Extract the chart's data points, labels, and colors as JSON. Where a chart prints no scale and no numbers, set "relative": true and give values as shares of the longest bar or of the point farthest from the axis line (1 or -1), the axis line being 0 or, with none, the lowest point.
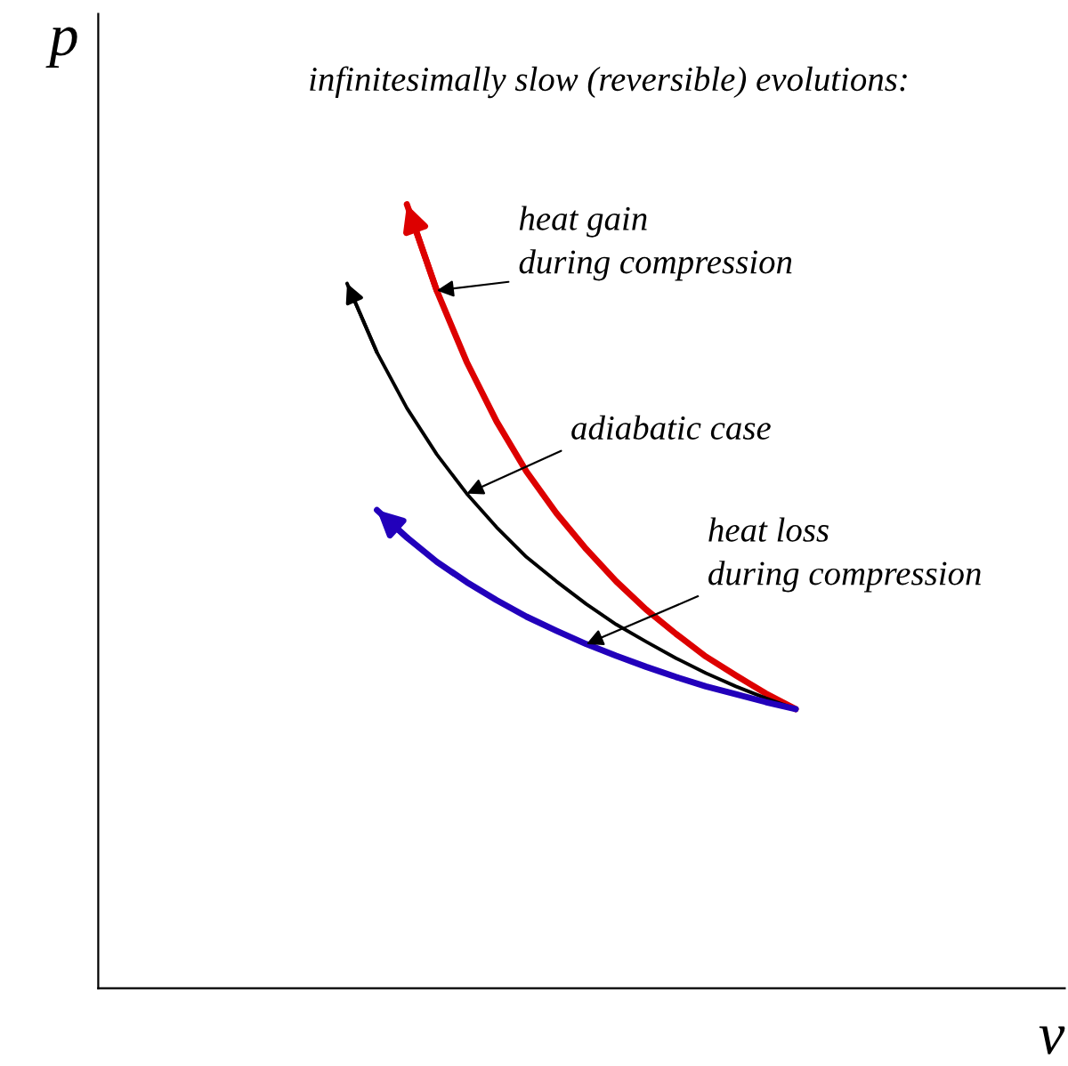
{
  "chart_data": {
    "type": "line",
    "relative": true,
    "title": "infinitesimally slow (reversible) evolutions:",
    "xlabel": "v",
    "ylabel": "p",
    "legend": false,
    "marker": "none",
    "line_style": "solid",
    "categories": [
      null,
      null,
      null,
      null,
      null,
      null,
      null,
      null,
      null,
      null,
      null,
      null,
      null,
      null,
      null,
      null
    ],
    "series": [
      {
        "color": "#dd0000",
        "values": [
          null,
          null,
          1.0,
          0.89,
          0.799,
          0.723,
          0.659,
          0.606,
          0.56,
          0.519,
          0.483,
          0.452,
          0.423,
          0.399,
          0.376,
          0.356
        ]
      },
      {
        "color": "#000000",
        "values": [
          0.899,
          0.811,
          0.74,
          0.681,
          0.631,
          0.588,
          0.55,
          0.519,
          0.49,
          0.464,
          0.442,
          0.421,
          0.402,
          0.385,
          0.37,
          0.356
        ]
      },
      {
        "color": "#2200bb",
        "values": [
          null,
          0.61,
          0.575,
          0.544,
          0.518,
          0.495,
          0.474,
          0.456,
          0.439,
          0.424,
          0.41,
          0.397,
          0.385,
          0.375,
          0.365,
          0.356
        ]
      }
    ],
    "annotations": [
      "heat gain\nduring compression",
      "adiabatic case",
      "heat loss\nduring compression"
    ]
  }
}
